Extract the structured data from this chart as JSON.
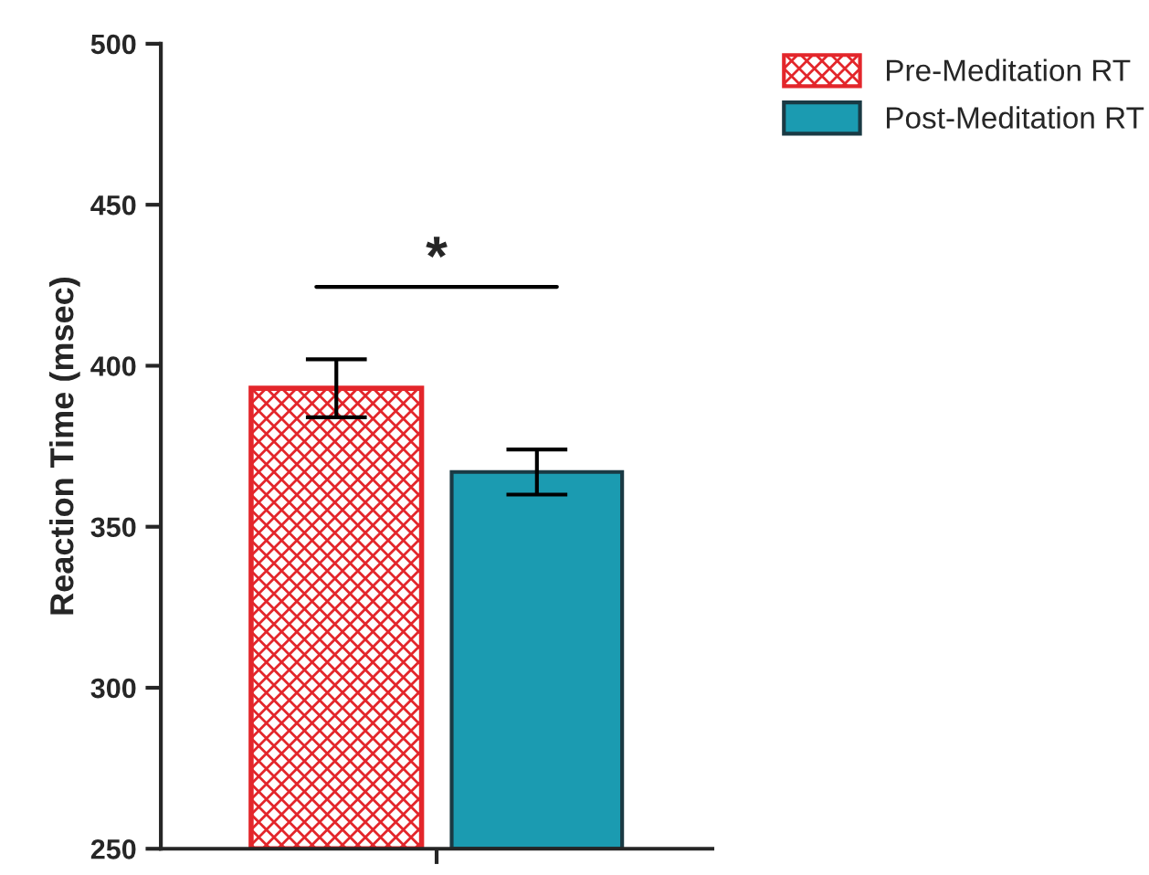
{
  "chart_data": {
    "type": "bar",
    "ylabel": "Reaction Time (msec)",
    "categories": [
      null
    ],
    "series": [
      {
        "name": "Pre-Meditation RT",
        "color": "#e3262b",
        "values": [
          393
        ],
        "errors": [
          [
            384,
            402
          ]
        ]
      },
      {
        "name": "Post-Meditation RT",
        "color": "#1b9bb1",
        "values": [
          367
        ],
        "errors": [
          [
            360,
            374
          ]
        ]
      }
    ],
    "ylim": [
      250,
      500
    ],
    "yticks": [
      250,
      300,
      350,
      400,
      450,
      500
    ],
    "annotations": [
      "*"
    ],
    "legend": "top right",
    "grid": false
  }
}
